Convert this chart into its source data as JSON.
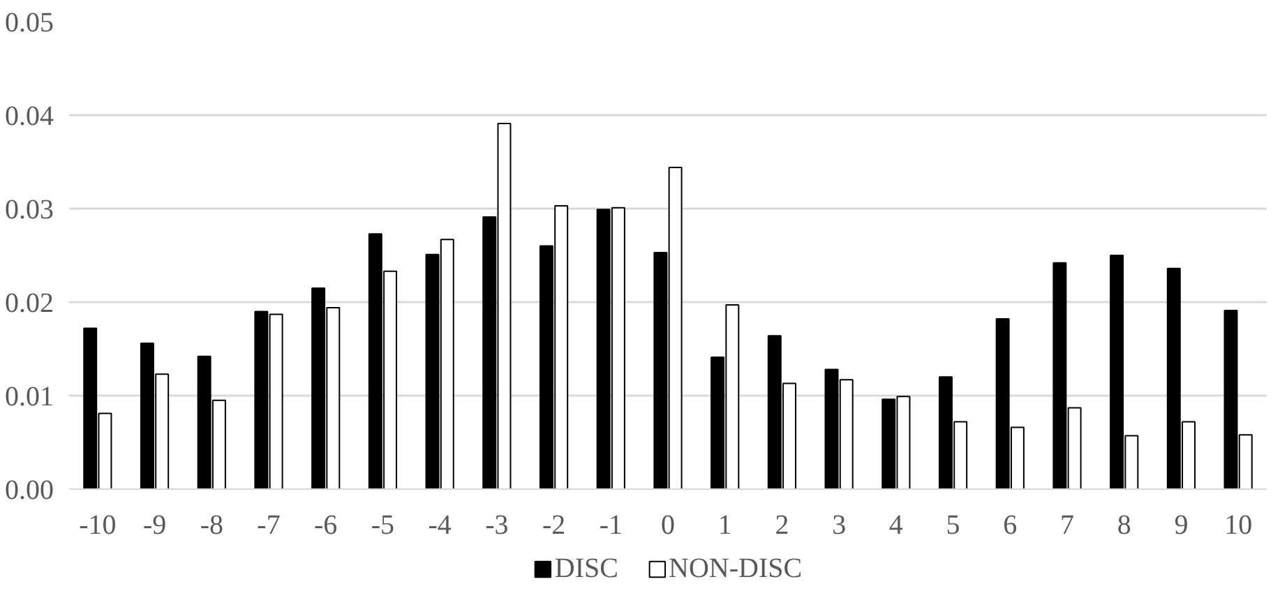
{
  "chart_data": {
    "type": "bar",
    "categories": [
      "-10",
      "-9",
      "-8",
      "-7",
      "-6",
      "-5",
      "-4",
      "-3",
      "-2",
      "-1",
      "0",
      "1",
      "2",
      "3",
      "4",
      "5",
      "6",
      "7",
      "8",
      "9",
      "10"
    ],
    "series": [
      {
        "name": "DISC",
        "color": "#000000",
        "values": [
          0.0172,
          0.0156,
          0.0142,
          0.019,
          0.0215,
          0.0273,
          0.0251,
          0.0291,
          0.026,
          0.0299,
          0.0253,
          0.0141,
          0.0164,
          0.0128,
          0.0096,
          0.012,
          0.0182,
          0.0242,
          0.025,
          0.0236,
          0.0191
        ]
      },
      {
        "name": "NON-DISC",
        "color": "#ffffff",
        "values": [
          0.0081,
          0.0123,
          0.0095,
          0.0187,
          0.0194,
          0.0233,
          0.0267,
          0.0391,
          0.0303,
          0.0301,
          0.0344,
          0.0197,
          0.0113,
          0.0117,
          0.0099,
          0.0072,
          0.0066,
          0.0087,
          0.0057,
          0.0072,
          0.0058
        ]
      }
    ],
    "ylim": [
      0,
      0.05
    ],
    "yticks": [
      {
        "value": 0,
        "label": "0.00"
      },
      {
        "value": 0.01,
        "label": "0.01"
      },
      {
        "value": 0.02,
        "label": "0.02"
      },
      {
        "value": 0.03,
        "label": "0.03"
      },
      {
        "value": 0.04,
        "label": "0.04"
      },
      {
        "value": 0.05,
        "label": "0.05"
      }
    ],
    "grid": "y",
    "legend": "bottom"
  }
}
